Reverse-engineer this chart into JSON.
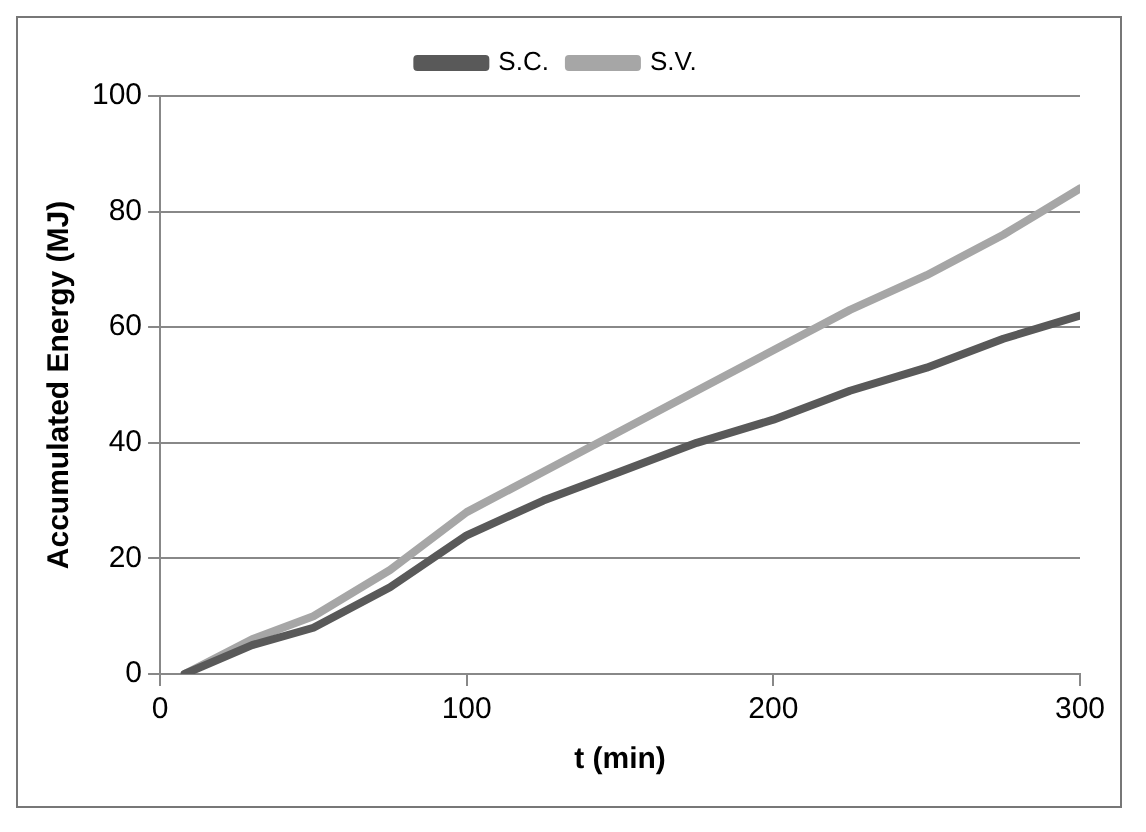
{
  "chart_data": {
    "type": "line",
    "xlabel": "t (min)",
    "ylabel": "Accumulated Energy (MJ)",
    "x": [
      8,
      30,
      50,
      75,
      100,
      125,
      150,
      175,
      200,
      225,
      250,
      275,
      300
    ],
    "series": [
      {
        "name": "S.C.",
        "color": "#595959",
        "values": [
          0,
          5,
          8,
          15,
          24,
          30,
          35,
          40,
          44,
          49,
          53,
          58,
          62
        ]
      },
      {
        "name": "S.V.",
        "color": "#a6a6a6",
        "values": [
          0,
          6,
          10,
          18,
          28,
          35,
          42,
          49,
          56,
          63,
          69,
          76,
          84
        ]
      }
    ],
    "xlim": [
      0,
      300
    ],
    "xticks": [
      0,
      100,
      200,
      300
    ],
    "ylim": [
      0,
      100
    ],
    "yticks": [
      0,
      20,
      40,
      60,
      80,
      100
    ],
    "grid": "y",
    "legend": "top",
    "marker": "none",
    "line_style": "solid"
  }
}
